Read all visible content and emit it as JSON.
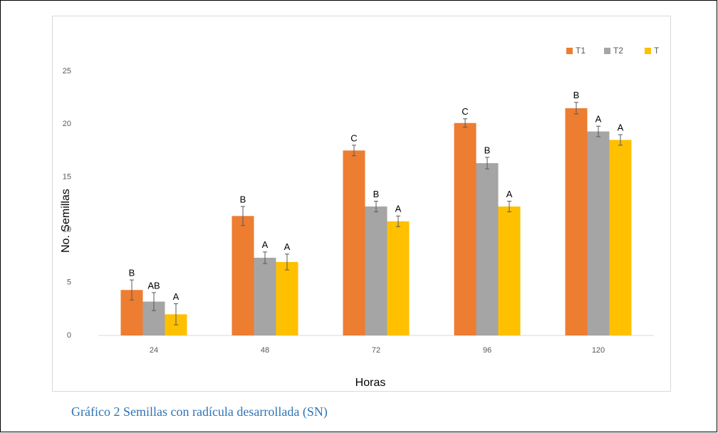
{
  "chart_data": {
    "type": "bar",
    "caption": "Gráfico 2 Semillas con radícula desarrollada (SN)",
    "x_label": "Horas",
    "y_label": "No. Semillas",
    "categories": [
      "24",
      "48",
      "72",
      "96",
      "120"
    ],
    "series": [
      {
        "name": "T1",
        "color": "#ed7d31",
        "values": [
          4.3,
          11.3,
          17.5,
          20.1,
          21.5
        ],
        "errors": [
          0.95,
          0.9,
          0.5,
          0.4,
          0.55
        ],
        "letters": [
          "B",
          "B",
          "C",
          "C",
          "B"
        ]
      },
      {
        "name": "T2",
        "color": "#a5a5a5",
        "values": [
          3.2,
          7.35,
          12.2,
          16.3,
          19.3
        ],
        "errors": [
          0.85,
          0.55,
          0.5,
          0.55,
          0.5
        ],
        "letters": [
          "AB",
          "A",
          "B",
          "B",
          "A"
        ]
      },
      {
        "name": "T",
        "color": "#ffc000",
        "values": [
          2.0,
          6.95,
          10.8,
          12.2,
          18.5
        ],
        "errors": [
          1.0,
          0.75,
          0.5,
          0.5,
          0.5
        ],
        "letters": [
          "A",
          "A",
          "A",
          "A",
          "A"
        ]
      }
    ],
    "ylim": [
      0,
      25
    ],
    "yticks": [
      0,
      5,
      10,
      15,
      20,
      25
    ],
    "legend": "top-right"
  }
}
